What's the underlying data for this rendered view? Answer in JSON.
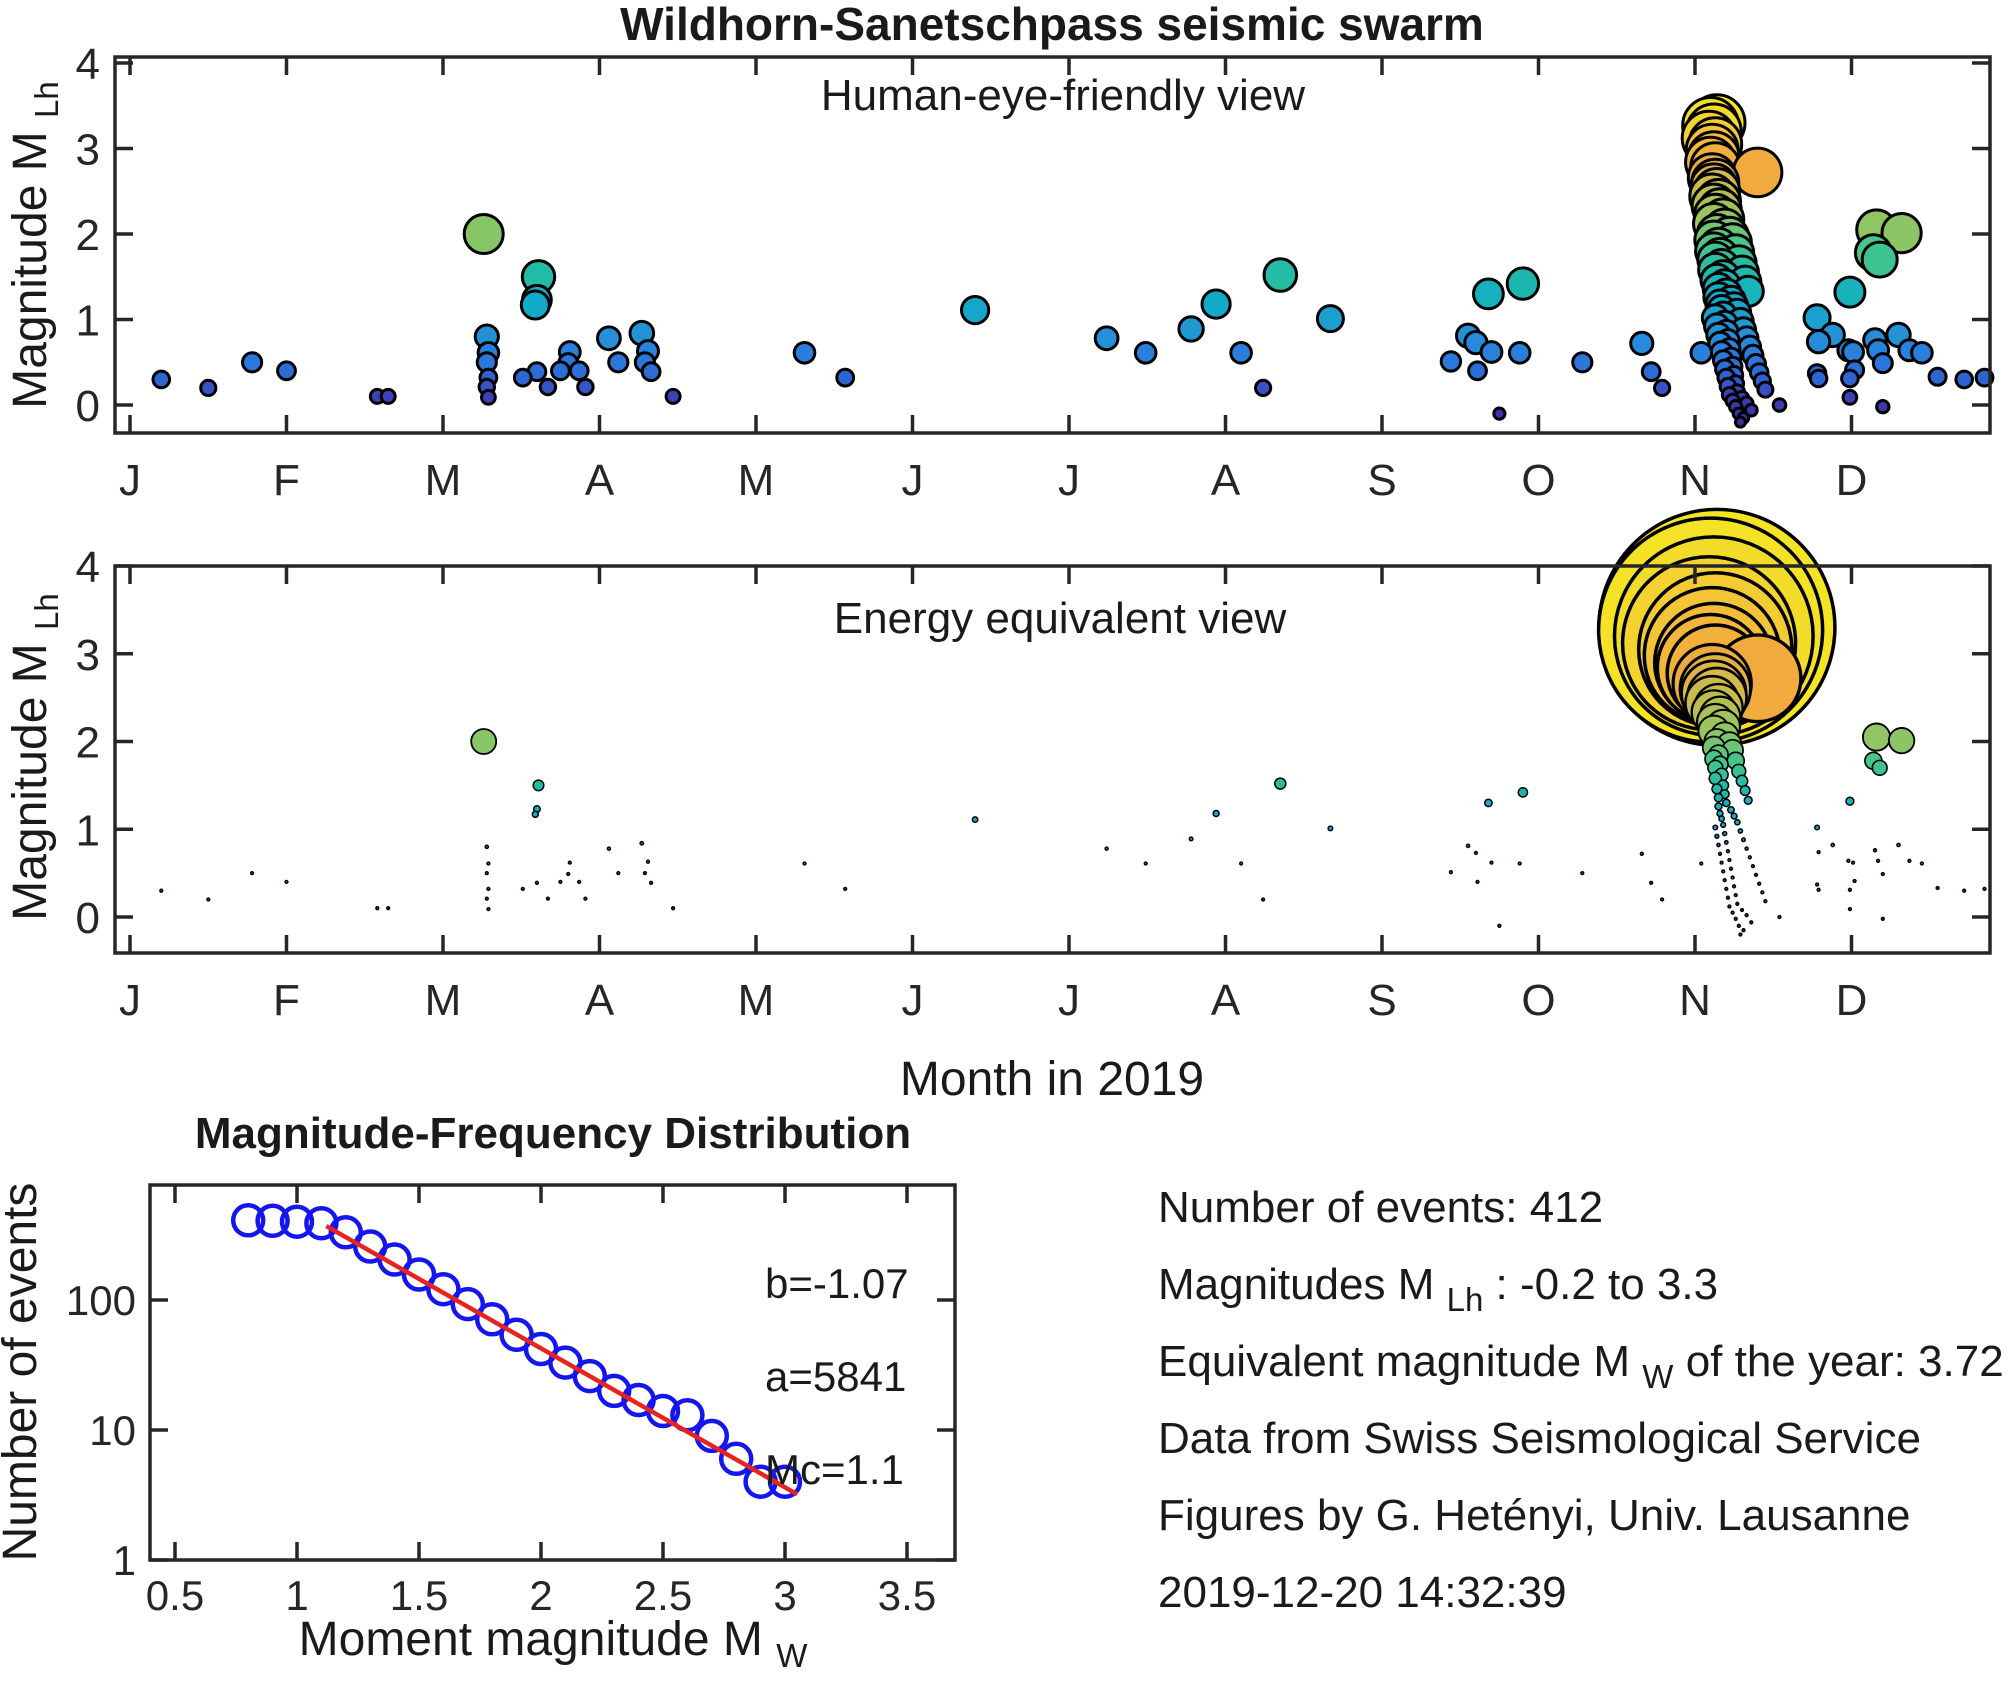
{
  "figure": {
    "title": "Wildhorn-Sanetschpass seismic swarm"
  },
  "colors": {
    "axis": "#262626",
    "marker_edge": "#000000",
    "mfd_circle": "#1515ee",
    "mfd_fit": "#e8231e",
    "background": "#ffffff"
  },
  "colormap": {
    "name": "parula",
    "domain": [
      -0.2,
      3.3
    ],
    "stops": [
      [
        0.0,
        "#3A2C99"
      ],
      [
        0.09,
        "#3E43B8"
      ],
      [
        0.14,
        "#2F62D2"
      ],
      [
        0.2,
        "#2B77DC"
      ],
      [
        0.26,
        "#2789DC"
      ],
      [
        0.31,
        "#2197D4"
      ],
      [
        0.4,
        "#12ACC8"
      ],
      [
        0.49,
        "#23BCA6"
      ],
      [
        0.57,
        "#4AC687"
      ],
      [
        0.63,
        "#8AC566"
      ],
      [
        0.71,
        "#B3C052"
      ],
      [
        0.77,
        "#D4B94A"
      ],
      [
        0.83,
        "#F0A83E"
      ],
      [
        0.91,
        "#F4C437"
      ],
      [
        1.0,
        "#F3E524"
      ]
    ]
  },
  "months": {
    "labels": [
      "J",
      "F",
      "M",
      "A",
      "M",
      "J",
      "J",
      "A",
      "S",
      "O",
      "N",
      "D"
    ]
  },
  "panel1": {
    "label": "Human-eye-friendly view",
    "ylabel_main": "Magnitude M",
    "ylabel_sub": "Lh",
    "yticks": [
      0,
      1,
      2,
      3,
      4
    ]
  },
  "panel2": {
    "label": "Energy equivalent view",
    "xlabel": "Month in 2019",
    "ylabel_main": "Magnitude M",
    "ylabel_sub": "Lh",
    "yticks": [
      0,
      1,
      2,
      3,
      4
    ]
  },
  "mfd": {
    "title": "Magnitude-Frequency Distribution",
    "ylabel": "Number of events",
    "xlabel_main": "Moment magnitude M",
    "xlabel_sub": "W",
    "xticks": [
      0.5,
      1,
      1.5,
      2,
      2.5,
      3,
      3.5
    ],
    "yticks": [
      1,
      10,
      100
    ],
    "ann_b": "b=-1.07",
    "ann_a": "a=5841",
    "ann_mc": "Mc=1.1"
  },
  "info": {
    "l1": "Number of events: 412",
    "l2_pre": "Magnitudes M",
    "l2_sub": "Lh",
    "l2_post": ": -0.2 to 3.3",
    "l3_pre": "Equivalent magnitude M",
    "l3_sub": "W",
    "l3_post": " of the year: 3.72",
    "l4": "Data from Swiss Seismological Service",
    "l5": "Figures by G. Hetényi, Univ. Lausanne",
    "l6": "2019-12-20 14:32:39"
  },
  "chart_data": {
    "type": "multi",
    "charts": [
      {
        "id": "human_eye_view",
        "type": "scatter",
        "title": "Human-eye-friendly view",
        "xlabel": "Month in 2019",
        "xticklabels": [
          "J",
          "F",
          "M",
          "A",
          "M",
          "J",
          "J",
          "A",
          "S",
          "O",
          "N",
          "D"
        ],
        "ylabel": "Magnitude MLh",
        "ylim": [
          -0.4,
          4
        ],
        "yticks": [
          0,
          1,
          2,
          3,
          4
        ],
        "marker": "filled circle, black edge; diameter and parula color scale linearly with magnitude",
        "series_ref": "events_months_mag"
      },
      {
        "id": "energy_equivalent_view",
        "type": "scatter",
        "title": "Energy equivalent view",
        "xlabel": "Month in 2019",
        "xticklabels": [
          "J",
          "F",
          "M",
          "A",
          "M",
          "J",
          "J",
          "A",
          "S",
          "O",
          "N",
          "D"
        ],
        "ylabel": "Magnitude MLh",
        "ylim": [
          -0.4,
          4
        ],
        "yticks": [
          0,
          1,
          2,
          3,
          4
        ],
        "marker": "same events, marker area proportional to radiated energy 10^(1.5*M); radius = 118*10^(0.75*(M-3.3)) px, min 1.4 px",
        "series_ref": "events_months_mag"
      },
      {
        "id": "mfd",
        "type": "scatter",
        "title": "Magnitude-Frequency Distribution",
        "xlabel": "Moment magnitude MW",
        "ylabel": "Number of events",
        "xlim": [
          0.5,
          3.5
        ],
        "yscale": "log",
        "ylim": [
          1,
          760
        ],
        "yticks": [
          1,
          10,
          100
        ],
        "x": [
          0.8,
          0.9,
          1.0,
          1.1,
          1.2,
          1.3,
          1.4,
          1.5,
          1.6,
          1.7,
          1.8,
          1.9,
          2.0,
          2.1,
          2.2,
          2.3,
          2.4,
          2.5,
          2.6,
          2.7,
          2.8,
          2.9,
          3.0
        ],
        "y": [
          410,
          407,
          400,
          390,
          332,
          258,
          205,
          157,
          121,
          93,
          71,
          54,
          42,
          33,
          26,
          20,
          17,
          14,
          13,
          9,
          6,
          4,
          4
        ],
        "fit": {
          "b": -1.07,
          "a": 5841,
          "Mc": 1.1,
          "line_from": [
            1.12,
            370
          ],
          "line_to": [
            3.05,
            3.2
          ]
        }
      }
    ],
    "events_months_mag": [
      [
        0.2,
        0.3
      ],
      [
        0.5,
        0.2
      ],
      [
        0.78,
        0.5
      ],
      [
        1.0,
        0.4
      ],
      [
        1.58,
        0.1
      ],
      [
        1.65,
        0.1
      ],
      [
        2.26,
        2.0
      ],
      [
        2.28,
        0.8
      ],
      [
        2.29,
        0.61
      ],
      [
        2.28,
        0.5
      ],
      [
        2.29,
        0.32
      ],
      [
        2.28,
        0.21
      ],
      [
        2.29,
        0.09
      ],
      [
        2.51,
        0.32
      ],
      [
        2.59,
        1.17
      ],
      [
        2.6,
        1.23
      ],
      [
        2.61,
        1.5
      ],
      [
        2.6,
        0.39
      ],
      [
        2.67,
        0.21
      ],
      [
        2.75,
        0.4
      ],
      [
        2.8,
        0.49
      ],
      [
        2.81,
        0.62
      ],
      [
        2.87,
        0.4
      ],
      [
        2.91,
        0.21
      ],
      [
        3.06,
        0.78
      ],
      [
        3.12,
        0.5
      ],
      [
        3.27,
        0.84
      ],
      [
        3.31,
        0.63
      ],
      [
        3.29,
        0.5
      ],
      [
        3.33,
        0.39
      ],
      [
        3.47,
        0.1
      ],
      [
        4.31,
        0.61
      ],
      [
        4.57,
        0.32
      ],
      [
        5.4,
        1.11
      ],
      [
        6.24,
        0.78
      ],
      [
        6.49,
        0.61
      ],
      [
        6.78,
        0.89
      ],
      [
        6.94,
        1.18
      ],
      [
        7.1,
        0.61
      ],
      [
        7.24,
        0.2
      ],
      [
        7.35,
        1.52
      ],
      [
        7.67,
        1.01
      ],
      [
        8.44,
        0.51
      ],
      [
        8.55,
        0.81
      ],
      [
        8.6,
        0.73
      ],
      [
        8.61,
        0.4
      ],
      [
        8.68,
        1.3
      ],
      [
        8.7,
        0.62
      ],
      [
        8.75,
        -0.1
      ],
      [
        8.88,
        0.61
      ],
      [
        8.9,
        1.42
      ],
      [
        9.28,
        0.5
      ],
      [
        9.66,
        0.72
      ],
      [
        9.72,
        0.39
      ],
      [
        9.79,
        0.2
      ],
      [
        10.04,
        0.61
      ],
      [
        10.14,
        3.3
      ],
      [
        10.1,
        3.27
      ],
      [
        10.12,
        3.2
      ],
      [
        10.09,
        3.12
      ],
      [
        10.13,
        3.05
      ],
      [
        10.11,
        2.98
      ],
      [
        10.12,
        2.9
      ],
      [
        10.1,
        2.84
      ],
      [
        10.13,
        2.78
      ],
      [
        10.4,
        2.72
      ],
      [
        10.11,
        2.66
      ],
      [
        10.13,
        2.6
      ],
      [
        10.12,
        2.55
      ],
      [
        10.14,
        2.5
      ],
      [
        10.11,
        2.44
      ],
      [
        10.15,
        2.38
      ],
      [
        10.12,
        2.33
      ],
      [
        10.16,
        2.28
      ],
      [
        10.13,
        2.22
      ],
      [
        10.18,
        2.17
      ],
      [
        10.12,
        2.12
      ],
      [
        10.19,
        2.06
      ],
      [
        10.14,
        2.0
      ],
      [
        10.22,
        1.97
      ],
      [
        10.12,
        1.93
      ],
      [
        10.24,
        1.9
      ],
      [
        10.15,
        1.85
      ],
      [
        10.12,
        1.8
      ],
      [
        10.26,
        1.78
      ],
      [
        10.16,
        1.74
      ],
      [
        10.13,
        1.7
      ],
      [
        10.28,
        1.66
      ],
      [
        10.17,
        1.62
      ],
      [
        10.13,
        1.58
      ],
      [
        10.3,
        1.55
      ],
      [
        10.18,
        1.5
      ],
      [
        10.14,
        1.46
      ],
      [
        10.32,
        1.44
      ],
      [
        10.19,
        1.4
      ],
      [
        10.15,
        1.36
      ],
      [
        10.34,
        1.33
      ],
      [
        10.2,
        1.3
      ],
      [
        10.15,
        1.26
      ],
      [
        10.23,
        1.22
      ],
      [
        10.16,
        1.18
      ],
      [
        10.25,
        1.15
      ],
      [
        10.17,
        1.12
      ],
      [
        10.27,
        1.08
      ],
      [
        10.18,
        1.05
      ],
      [
        10.13,
        1.02
      ],
      [
        10.29,
        0.98
      ],
      [
        10.19,
        0.95
      ],
      [
        10.14,
        0.92
      ],
      [
        10.31,
        0.88
      ],
      [
        10.2,
        0.85
      ],
      [
        10.15,
        0.82
      ],
      [
        10.33,
        0.78
      ],
      [
        10.21,
        0.75
      ],
      [
        10.16,
        0.72
      ],
      [
        10.35,
        0.68
      ],
      [
        10.22,
        0.65
      ],
      [
        10.17,
        0.62
      ],
      [
        10.37,
        0.58
      ],
      [
        10.23,
        0.55
      ],
      [
        10.18,
        0.52
      ],
      [
        10.39,
        0.48
      ],
      [
        10.24,
        0.45
      ],
      [
        10.19,
        0.42
      ],
      [
        10.41,
        0.38
      ],
      [
        10.25,
        0.35
      ],
      [
        10.2,
        0.32
      ],
      [
        10.43,
        0.28
      ],
      [
        10.26,
        0.25
      ],
      [
        10.21,
        0.22
      ],
      [
        10.45,
        0.18
      ],
      [
        10.27,
        0.15
      ],
      [
        10.22,
        0.12
      ],
      [
        10.3,
        0.08
      ],
      [
        10.24,
        0.05
      ],
      [
        10.33,
        0.02
      ],
      [
        10.26,
        -0.02
      ],
      [
        10.36,
        -0.06
      ],
      [
        10.28,
        -0.1
      ],
      [
        10.31,
        -0.15
      ],
      [
        10.29,
        -0.2
      ],
      [
        10.54,
        0.0
      ],
      [
        10.78,
        1.02
      ],
      [
        10.79,
        0.74
      ],
      [
        10.78,
        0.37
      ],
      [
        10.79,
        0.31
      ],
      [
        10.88,
        0.82
      ],
      [
        10.98,
        0.64
      ],
      [
        10.99,
        1.32
      ],
      [
        10.99,
        0.31
      ],
      [
        11.01,
        0.62
      ],
      [
        11.02,
        0.41
      ],
      [
        10.99,
        0.09
      ],
      [
        11.14,
        1.78
      ],
      [
        11.16,
        2.05
      ],
      [
        11.18,
        1.7
      ],
      [
        11.32,
        2.01
      ],
      [
        11.15,
        0.76
      ],
      [
        11.17,
        0.64
      ],
      [
        11.2,
        0.49
      ],
      [
        11.3,
        0.82
      ],
      [
        11.37,
        0.64
      ],
      [
        11.45,
        0.61
      ],
      [
        11.55,
        0.33
      ],
      [
        11.2,
        -0.02
      ],
      [
        11.72,
        0.3
      ],
      [
        11.85,
        0.32
      ]
    ]
  }
}
